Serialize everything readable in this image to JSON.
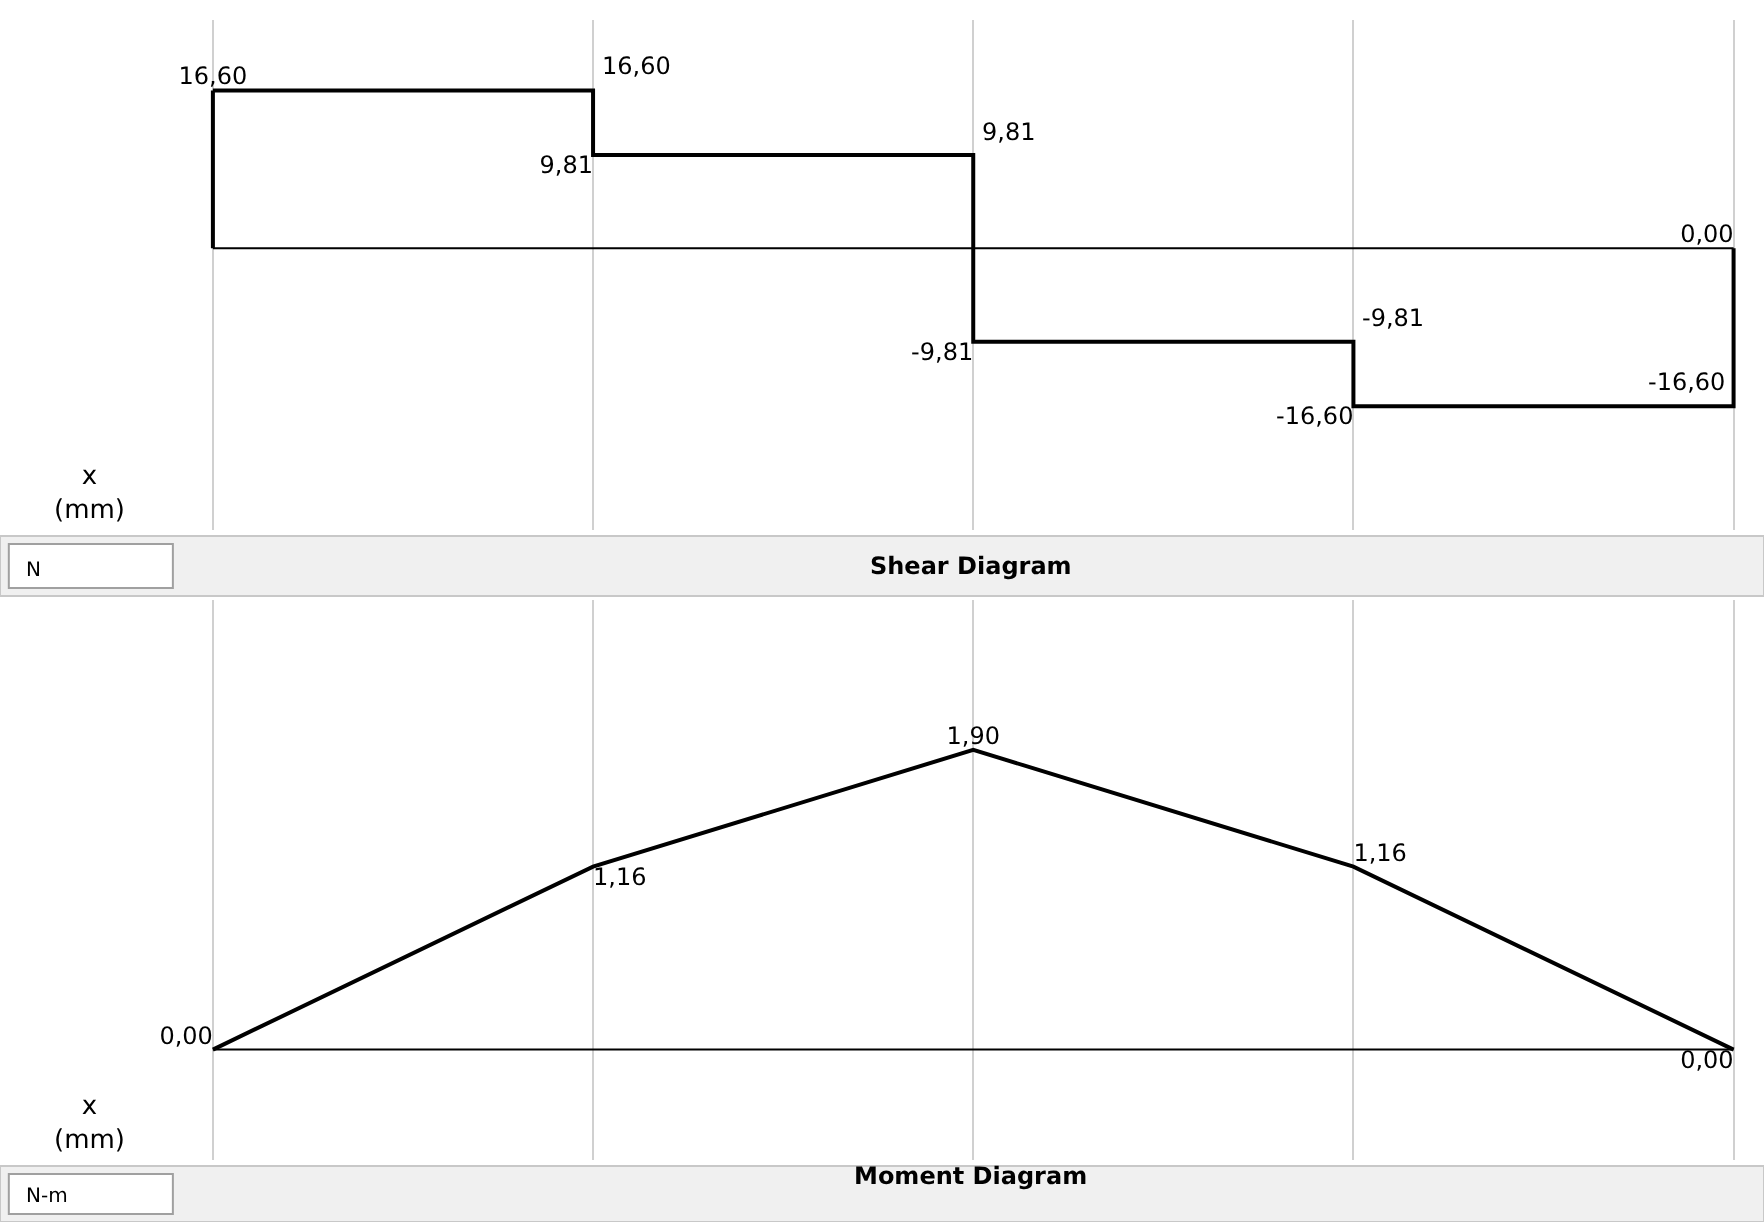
{
  "chart_data": [
    {
      "type": "step",
      "title": "Shear Diagram",
      "xlabel": "x (mm)",
      "grid": "x",
      "color": "#000000",
      "categories": [
        null,
        null,
        null,
        null,
        null
      ],
      "values": [
        16.6,
        9.81,
        -9.81,
        -16.6,
        0.0
      ],
      "value_labels": [
        "16,60",
        "9,81",
        "-9,81",
        "-16,60",
        "0,00"
      ],
      "annotations": [
        "16,60",
        "9,81",
        "-9,81",
        "-16,60",
        "N"
      ],
      "ylim": [
        -29.6,
        24
      ]
    },
    {
      "type": "line",
      "title": "Moment Diagram",
      "xlabel": "x (mm)",
      "grid": "x",
      "color": "#000000",
      "annotations": [
        "N-m"
      ],
      "categories": [
        null,
        null,
        null,
        null,
        null
      ],
      "values": [
        0.0,
        1.16,
        1.9,
        1.16,
        0.0
      ],
      "value_labels": [
        "0,00",
        "1,16",
        "1,90",
        "1,16",
        "0,00"
      ],
      "ylim": [
        -0.7,
        2.85
      ]
    }
  ]
}
